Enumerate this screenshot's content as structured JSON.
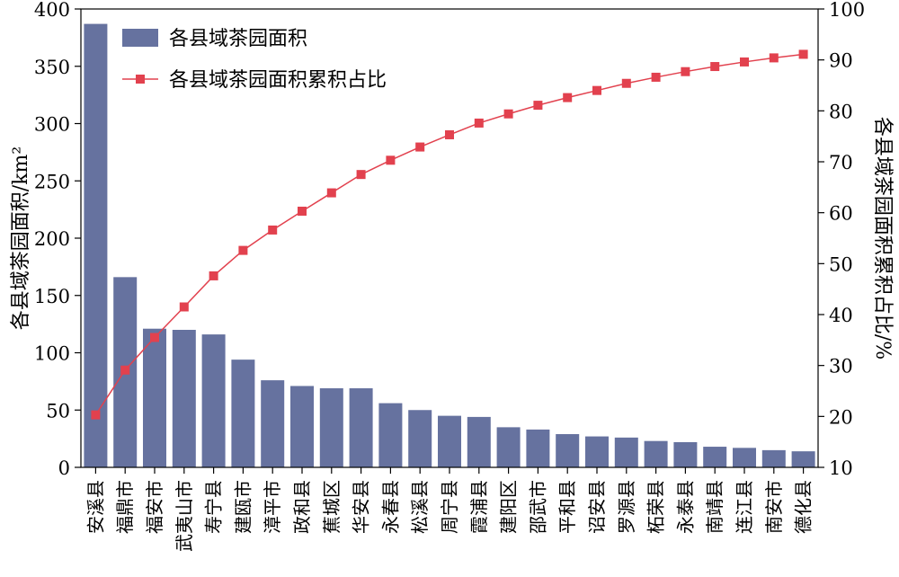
{
  "chart_data": {
    "type": "bar",
    "categories": [
      "安溪县",
      "福鼎市",
      "福安市",
      "武夷山市",
      "寿宁县",
      "建瓯市",
      "漳平市",
      "政和县",
      "蕉城区",
      "华安县",
      "永春县",
      "松溪县",
      "周宁县",
      "霞浦县",
      "建阳区",
      "邵武市",
      "平和县",
      "诏安县",
      "罗源县",
      "柘荣县",
      "永泰县",
      "南靖县",
      "连江县",
      "南安市",
      "德化县"
    ],
    "series": [
      {
        "name": "各县域茶园面积",
        "kind": "bar",
        "axis": "left",
        "color": "#66729f",
        "values": [
          387,
          166,
          121,
          120,
          116,
          94,
          76,
          71,
          69,
          69,
          56,
          50,
          45,
          44,
          35,
          33,
          29,
          27,
          26,
          23,
          22,
          18,
          17,
          15,
          14
        ]
      },
      {
        "name": "各县域茶园面积累积占比",
        "kind": "line",
        "axis": "right",
        "color": "#e2414e",
        "values": [
          20.3,
          29.1,
          35.5,
          41.5,
          47.6,
          52.6,
          56.6,
          60.3,
          63.9,
          67.5,
          70.3,
          72.9,
          75.3,
          77.6,
          79.4,
          81.1,
          82.6,
          84.0,
          85.4,
          86.6,
          87.7,
          88.7,
          89.6,
          90.4,
          91.1
        ]
      }
    ],
    "ylabel": "各县域茶园面积/km²",
    "y2label": "各县域茶园面积累积占比/%",
    "ylim": [
      0,
      400
    ],
    "y2lim": [
      10,
      100
    ],
    "yticks": [
      0,
      50,
      100,
      150,
      200,
      250,
      300,
      350,
      400
    ],
    "y2ticks": [
      10,
      20,
      30,
      40,
      50,
      60,
      70,
      80,
      90,
      100
    ],
    "legend_position": "top-left",
    "grid": false
  }
}
